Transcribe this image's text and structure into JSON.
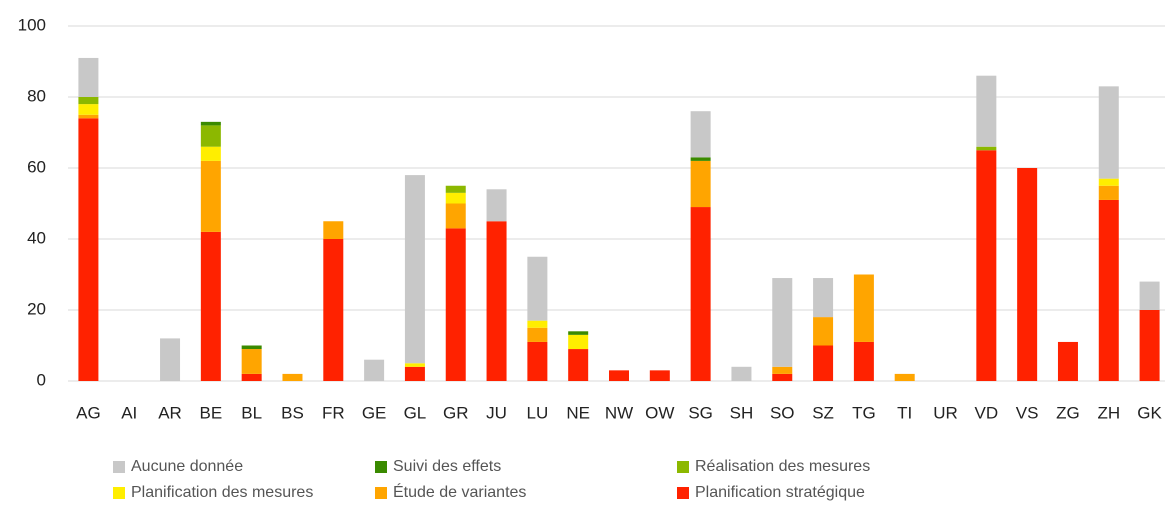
{
  "chart_data": {
    "type": "stacked_bar",
    "categories": [
      "AG",
      "AI",
      "AR",
      "BE",
      "BL",
      "BS",
      "FR",
      "GE",
      "GL",
      "GR",
      "JU",
      "LU",
      "NE",
      "NW",
      "OW",
      "SG",
      "SH",
      "SO",
      "SZ",
      "TG",
      "TI",
      "UR",
      "VD",
      "VS",
      "ZG",
      "ZH",
      "GK"
    ],
    "series": [
      {
        "name": "Aucune donnée",
        "color": "#c8c8c8",
        "values": [
          11,
          0,
          12,
          0,
          0,
          0,
          0,
          6,
          53,
          0,
          9,
          18,
          0,
          0,
          0,
          13,
          4,
          25,
          11,
          0,
          0,
          0,
          20,
          0,
          0,
          26,
          8
        ]
      },
      {
        "name": "Suivi des effets",
        "color": "#3a8a00",
        "values": [
          0,
          0,
          0,
          1,
          1,
          0,
          0,
          0,
          0,
          0,
          0,
          0,
          1,
          0,
          0,
          1,
          0,
          0,
          0,
          0,
          0,
          0,
          0,
          0,
          0,
          0,
          0
        ]
      },
      {
        "name": "Réalisation des mesures",
        "color": "#8cb800",
        "values": [
          2,
          0,
          0,
          6,
          0,
          0,
          0,
          0,
          0,
          2,
          0,
          0,
          0,
          0,
          0,
          0,
          0,
          0,
          0,
          0,
          0,
          0,
          1,
          0,
          0,
          0,
          0
        ]
      },
      {
        "name": "Planification des mesures",
        "color": "#ffee00",
        "values": [
          3,
          0,
          0,
          4,
          0,
          0,
          0,
          0,
          1,
          3,
          0,
          2,
          4,
          0,
          0,
          0,
          0,
          0,
          0,
          0,
          0,
          0,
          0,
          0,
          0,
          2,
          0
        ]
      },
      {
        "name": "Étude de variantes",
        "color": "#ffa500",
        "values": [
          1,
          0,
          0,
          20,
          7,
          2,
          5,
          0,
          0,
          7,
          0,
          4,
          0,
          0,
          0,
          13,
          0,
          2,
          8,
          19,
          2,
          0,
          0,
          0,
          0,
          4,
          0
        ]
      },
      {
        "name": "Planification stratégique",
        "color": "#ff2200",
        "values": [
          74,
          0,
          0,
          42,
          2,
          0,
          40,
          0,
          4,
          43,
          45,
          11,
          9,
          3,
          3,
          49,
          0,
          2,
          10,
          11,
          0,
          0,
          65,
          60,
          11,
          51,
          20
        ]
      }
    ],
    "ylim": [
      0,
      100
    ],
    "yticks": [
      0,
      20,
      40,
      60,
      80,
      100
    ],
    "grid": true
  }
}
